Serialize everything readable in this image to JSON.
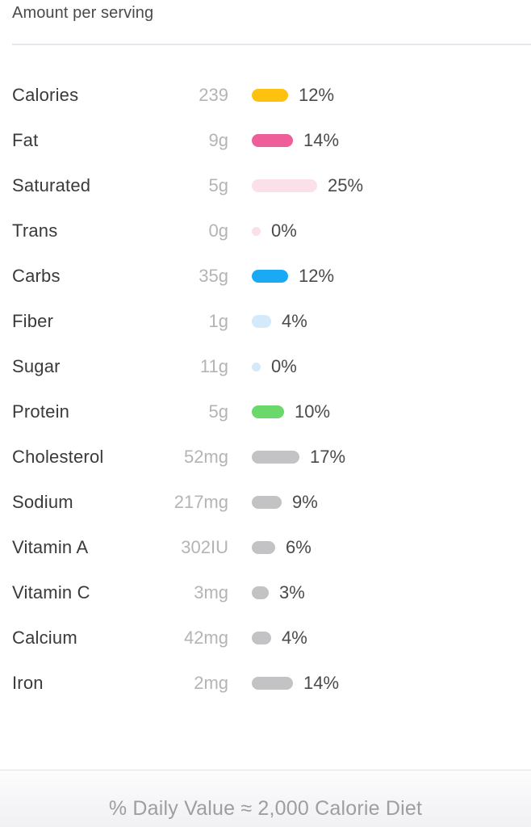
{
  "header": {
    "title": "Amount per serving"
  },
  "table": {
    "nutrients": [
      {
        "label": "Calories",
        "value": "239",
        "percent": 12,
        "percent_label": "12%",
        "color": "#fdc110"
      },
      {
        "label": "Fat",
        "value": "9g",
        "percent": 14,
        "percent_label": "14%",
        "color": "#ee5f99"
      },
      {
        "label": "Saturated",
        "value": "5g",
        "percent": 25,
        "percent_label": "25%",
        "color": "#fbdfe9"
      },
      {
        "label": "Trans",
        "value": "0g",
        "percent": 0,
        "percent_label": "0%",
        "color": "#fbdfe9"
      },
      {
        "label": "Carbs",
        "value": "35g",
        "percent": 12,
        "percent_label": "12%",
        "color": "#1aa9f5"
      },
      {
        "label": "Fiber",
        "value": "1g",
        "percent": 4,
        "percent_label": "4%",
        "color": "#d4e9f9"
      },
      {
        "label": "Sugar",
        "value": "11g",
        "percent": 0,
        "percent_label": "0%",
        "color": "#d4e9f9"
      },
      {
        "label": "Protein",
        "value": "5g",
        "percent": 10,
        "percent_label": "10%",
        "color": "#6ad86a"
      },
      {
        "label": "Cholesterol",
        "value": "52mg",
        "percent": 17,
        "percent_label": "17%",
        "color": "#c3c3c5"
      },
      {
        "label": "Sodium",
        "value": "217mg",
        "percent": 9,
        "percent_label": "9%",
        "color": "#c3c3c5"
      },
      {
        "label": "Vitamin A",
        "value": "302IU",
        "percent": 6,
        "percent_label": "6%",
        "color": "#c3c3c5"
      },
      {
        "label": "Vitamin C",
        "value": "3mg",
        "percent": 3,
        "percent_label": "3%",
        "color": "#c3c3c5"
      },
      {
        "label": "Calcium",
        "value": "42mg",
        "percent": 4,
        "percent_label": "4%",
        "color": "#c3c3c5"
      },
      {
        "label": "Iron",
        "value": "2mg",
        "percent": 14,
        "percent_label": "14%",
        "color": "#c3c3c5"
      }
    ]
  },
  "footer": {
    "note": "% Daily Value ≈ 2,000 Calorie Diet"
  },
  "colors": {
    "divider": "#e4e7ed",
    "label_text": "#3a3a3c",
    "value_text": "#b4b4b6",
    "percent_text": "#4a4a4c",
    "footer_text": "#9e9ea2",
    "footer_bg": "#f1f1f3"
  }
}
